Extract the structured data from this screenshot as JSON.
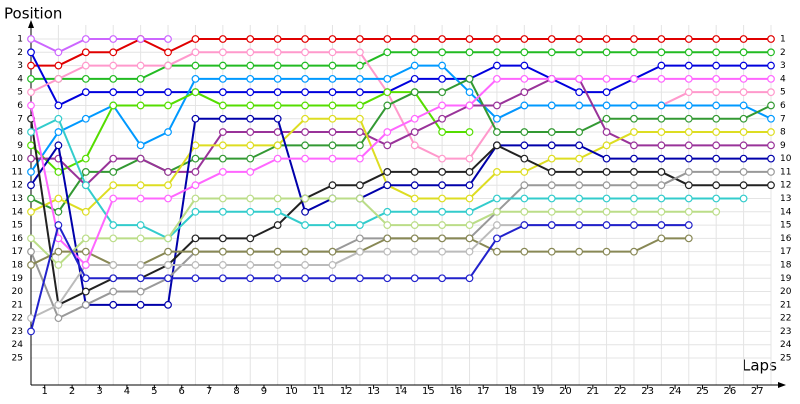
{
  "chart_data": {
    "type": "line",
    "title": "Position",
    "x_label": "Laps",
    "xlim": [
      0,
      27
    ],
    "ylim": [
      1,
      25
    ],
    "y_inverted": true,
    "grid": true,
    "xticks": [
      {
        "value": 0.5,
        "label": "1"
      },
      {
        "value": 1.5,
        "label": "2"
      },
      {
        "value": 2.5,
        "label": "3"
      },
      {
        "value": 3.5,
        "label": "4"
      },
      {
        "value": 4.5,
        "label": "5"
      },
      {
        "value": 5.5,
        "label": "6"
      },
      {
        "value": 6.5,
        "label": "7"
      },
      {
        "value": 7.5,
        "label": "8"
      },
      {
        "value": 8.5,
        "label": "9"
      },
      {
        "value": 9.5,
        "label": "10"
      },
      {
        "value": 10.5,
        "label": "11"
      },
      {
        "value": 11.5,
        "label": "12"
      },
      {
        "value": 12.5,
        "label": "13"
      },
      {
        "value": 13.5,
        "label": "14"
      },
      {
        "value": 14.5,
        "label": "15"
      },
      {
        "value": 15.5,
        "label": "16"
      },
      {
        "value": 16.5,
        "label": "17"
      },
      {
        "value": 17.5,
        "label": "18"
      },
      {
        "value": 18.5,
        "label": "19"
      },
      {
        "value": 19.5,
        "label": "20"
      },
      {
        "value": 20.5,
        "label": "21"
      },
      {
        "value": 21.5,
        "label": "22"
      },
      {
        "value": 22.5,
        "label": "23"
      },
      {
        "value": 23.5,
        "label": "24"
      },
      {
        "value": 24.5,
        "label": "25"
      },
      {
        "value": 25.5,
        "label": "26"
      },
      {
        "value": 26.5,
        "label": "27"
      }
    ],
    "yticks": [
      1,
      2,
      3,
      4,
      5,
      6,
      7,
      8,
      9,
      10,
      11,
      12,
      13,
      14,
      15,
      16,
      17,
      18,
      19,
      20,
      21,
      22,
      23,
      24,
      25
    ],
    "x": [
      0,
      1,
      2,
      3,
      4,
      5,
      6,
      7,
      8,
      9,
      10,
      11,
      12,
      13,
      14,
      15,
      16,
      17,
      18,
      19,
      20,
      21,
      22,
      23,
      24,
      25,
      26,
      27
    ],
    "series": [
      {
        "color": "#e00000",
        "values": [
          3,
          3,
          2,
          2,
          1,
          2,
          1,
          1,
          1,
          1,
          1,
          1,
          1,
          1,
          1,
          1,
          1,
          1,
          1,
          1,
          1,
          1,
          1,
          1,
          1,
          1,
          1,
          1
        ]
      },
      {
        "color": "#22bb22",
        "values": [
          4,
          4,
          4,
          4,
          4,
          3,
          3,
          3,
          3,
          3,
          3,
          3,
          3,
          2,
          2,
          2,
          2,
          2,
          2,
          2,
          2,
          2,
          2,
          2,
          2,
          2,
          2,
          2
        ]
      },
      {
        "color": "#0000dd",
        "values": [
          2,
          6,
          5,
          5,
          5,
          5,
          5,
          5,
          5,
          5,
          5,
          5,
          5,
          5,
          4,
          4,
          4,
          3,
          3,
          4,
          5,
          5,
          4,
          3,
          3,
          3,
          3,
          3
        ]
      },
      {
        "color": "#ff99cc",
        "values": [
          5,
          4,
          3,
          3,
          3,
          3,
          2,
          2,
          2,
          2,
          2,
          2,
          2,
          5,
          9,
          10,
          10,
          7,
          6,
          6,
          6,
          6,
          6,
          6,
          5,
          5,
          5,
          5
        ]
      },
      {
        "color": "#cc66ff",
        "values": [
          1,
          2,
          1,
          1,
          1,
          1,
          null,
          null,
          null,
          null,
          null,
          null,
          null,
          null,
          null,
          null,
          null,
          null,
          null,
          null,
          null,
          null,
          null,
          null,
          null,
          null,
          null,
          null
        ]
      },
      {
        "color": "#0099ff",
        "values": [
          11,
          8,
          7,
          6,
          9,
          8,
          4,
          4,
          4,
          4,
          4,
          4,
          4,
          4,
          3,
          3,
          5,
          7,
          6,
          6,
          6,
          6,
          6,
          6,
          6,
          6,
          6,
          7
        ]
      },
      {
        "color": "#55dd00",
        "values": [
          9,
          11,
          10,
          6,
          6,
          6,
          5,
          6,
          6,
          6,
          6,
          6,
          6,
          5,
          5,
          8,
          8,
          null,
          null,
          null,
          null,
          null,
          null,
          null,
          null,
          null,
          null,
          null
        ]
      },
      {
        "color": "#339933",
        "values": [
          13,
          14,
          11,
          11,
          10,
          11,
          10,
          10,
          10,
          9,
          9,
          9,
          9,
          6,
          5,
          5,
          4,
          8,
          8,
          8,
          8,
          7,
          7,
          7,
          7,
          7,
          7,
          6
        ]
      },
      {
        "color": "#993399",
        "values": [
          10,
          10,
          12,
          10,
          10,
          11,
          11,
          8,
          8,
          8,
          8,
          8,
          8,
          9,
          8,
          7,
          6,
          6,
          5,
          4,
          4,
          8,
          9,
          9,
          9,
          9,
          9,
          9
        ]
      },
      {
        "color": "#dddd22",
        "values": [
          14,
          13,
          14,
          12,
          12,
          12,
          9,
          9,
          9,
          9,
          7,
          7,
          7,
          12,
          13,
          13,
          13,
          11,
          11,
          10,
          10,
          9,
          8,
          8,
          8,
          8,
          8,
          8
        ]
      },
      {
        "color": "#0000aa",
        "values": [
          12,
          9,
          21,
          21,
          21,
          21,
          7,
          7,
          7,
          7,
          14,
          13,
          13,
          12,
          12,
          12,
          12,
          9,
          9,
          9,
          9,
          10,
          10,
          10,
          10,
          10,
          10,
          10
        ]
      },
      {
        "color": "#222222",
        "values": [
          7,
          21,
          20,
          19,
          19,
          18,
          16,
          16,
          16,
          15,
          13,
          12,
          12,
          11,
          11,
          11,
          11,
          9,
          10,
          11,
          11,
          11,
          11,
          11,
          12,
          12,
          12,
          12
        ]
      },
      {
        "color": "#999999",
        "values": [
          17,
          22,
          21,
          20,
          20,
          19,
          17,
          17,
          17,
          17,
          17,
          17,
          16,
          16,
          16,
          16,
          16,
          14,
          12,
          12,
          12,
          12,
          12,
          12,
          11,
          11,
          11,
          11
        ]
      },
      {
        "color": "#33cccc",
        "values": [
          8,
          7,
          12,
          15,
          15,
          16,
          14,
          14,
          14,
          14,
          15,
          15,
          15,
          14,
          14,
          14,
          14,
          13,
          13,
          13,
          13,
          13,
          13,
          13,
          13,
          13,
          13,
          null
        ]
      },
      {
        "color": "#bbdd88",
        "values": [
          16,
          18,
          16,
          16,
          16,
          16,
          13,
          13,
          13,
          13,
          13,
          13,
          13,
          15,
          15,
          15,
          15,
          14,
          14,
          14,
          14,
          14,
          14,
          14,
          14,
          14,
          null,
          null
        ]
      },
      {
        "color": "#888855",
        "values": [
          18,
          17,
          17,
          18,
          18,
          17,
          17,
          17,
          17,
          17,
          17,
          17,
          17,
          16,
          16,
          16,
          16,
          17,
          17,
          17,
          17,
          17,
          17,
          16,
          16,
          null,
          null,
          null
        ]
      },
      {
        "color": "#bbbbbb",
        "values": [
          22,
          21,
          18,
          18,
          18,
          18,
          18,
          18,
          18,
          18,
          18,
          18,
          17,
          17,
          17,
          17,
          17,
          15,
          15,
          15,
          15,
          15,
          15,
          15,
          15,
          null,
          null,
          null
        ]
      },
      {
        "color": "#ff66ff",
        "values": [
          6,
          16,
          18,
          13,
          13,
          13,
          12,
          11,
          11,
          10,
          10,
          10,
          10,
          8,
          7,
          6,
          6,
          4,
          4,
          4,
          4,
          4,
          4,
          4,
          4,
          4,
          4,
          4
        ]
      },
      {
        "color": "#2222cc",
        "values": [
          23,
          15,
          19,
          19,
          19,
          19,
          19,
          19,
          19,
          19,
          19,
          19,
          19,
          19,
          19,
          19,
          19,
          16,
          15,
          15,
          15,
          15,
          15,
          15,
          15,
          null,
          null,
          null
        ]
      }
    ]
  }
}
